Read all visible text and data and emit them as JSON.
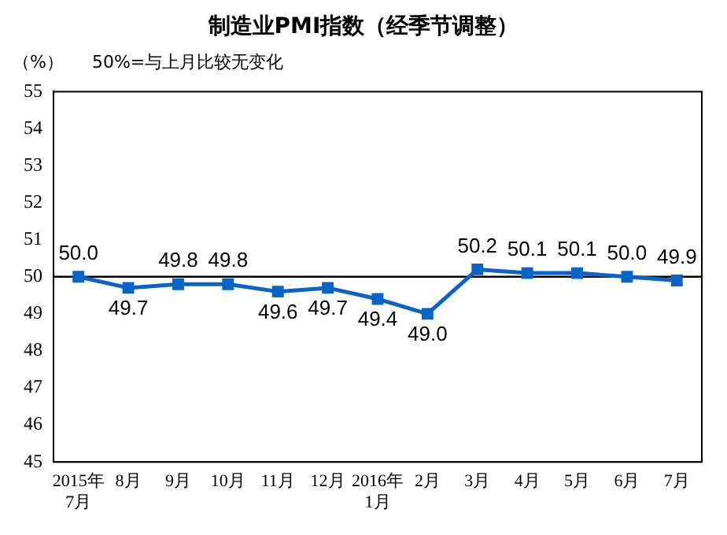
{
  "chart_data": {
    "type": "line",
    "title": "制造业PMI指数（经季节调整）",
    "ylabel": "（%）",
    "annotations": [
      "50%=与上月比较无变化"
    ],
    "categories": [
      "2015年\n7月",
      "8月",
      "9月",
      "10月",
      "11月",
      "12月",
      "2016年\n1月",
      "2月",
      "3月",
      "4月",
      "5月",
      "6月",
      "7月"
    ],
    "series": [
      {
        "color": "#0a64c8",
        "values": [
          50.0,
          49.7,
          49.8,
          49.8,
          49.6,
          49.7,
          49.4,
          49.0,
          50.2,
          50.1,
          50.1,
          50.0,
          49.9
        ],
        "value_labels": [
          "50.0",
          "49.7",
          "49.8",
          "49.8",
          "49.6",
          "49.7",
          "49.4",
          "49.0",
          "50.2",
          "50.1",
          "50.1",
          "50.0",
          "49.9"
        ]
      }
    ],
    "ylim": [
      45,
      55
    ],
    "yticks": [
      45,
      46,
      47,
      48,
      49,
      50,
      51,
      52,
      53,
      54,
      55
    ],
    "ref_lines": [
      {
        "axis": "y",
        "value": 50,
        "color": "#000000"
      }
    ],
    "marker": "square",
    "line_style": "solid",
    "grid": false,
    "legend": false
  }
}
